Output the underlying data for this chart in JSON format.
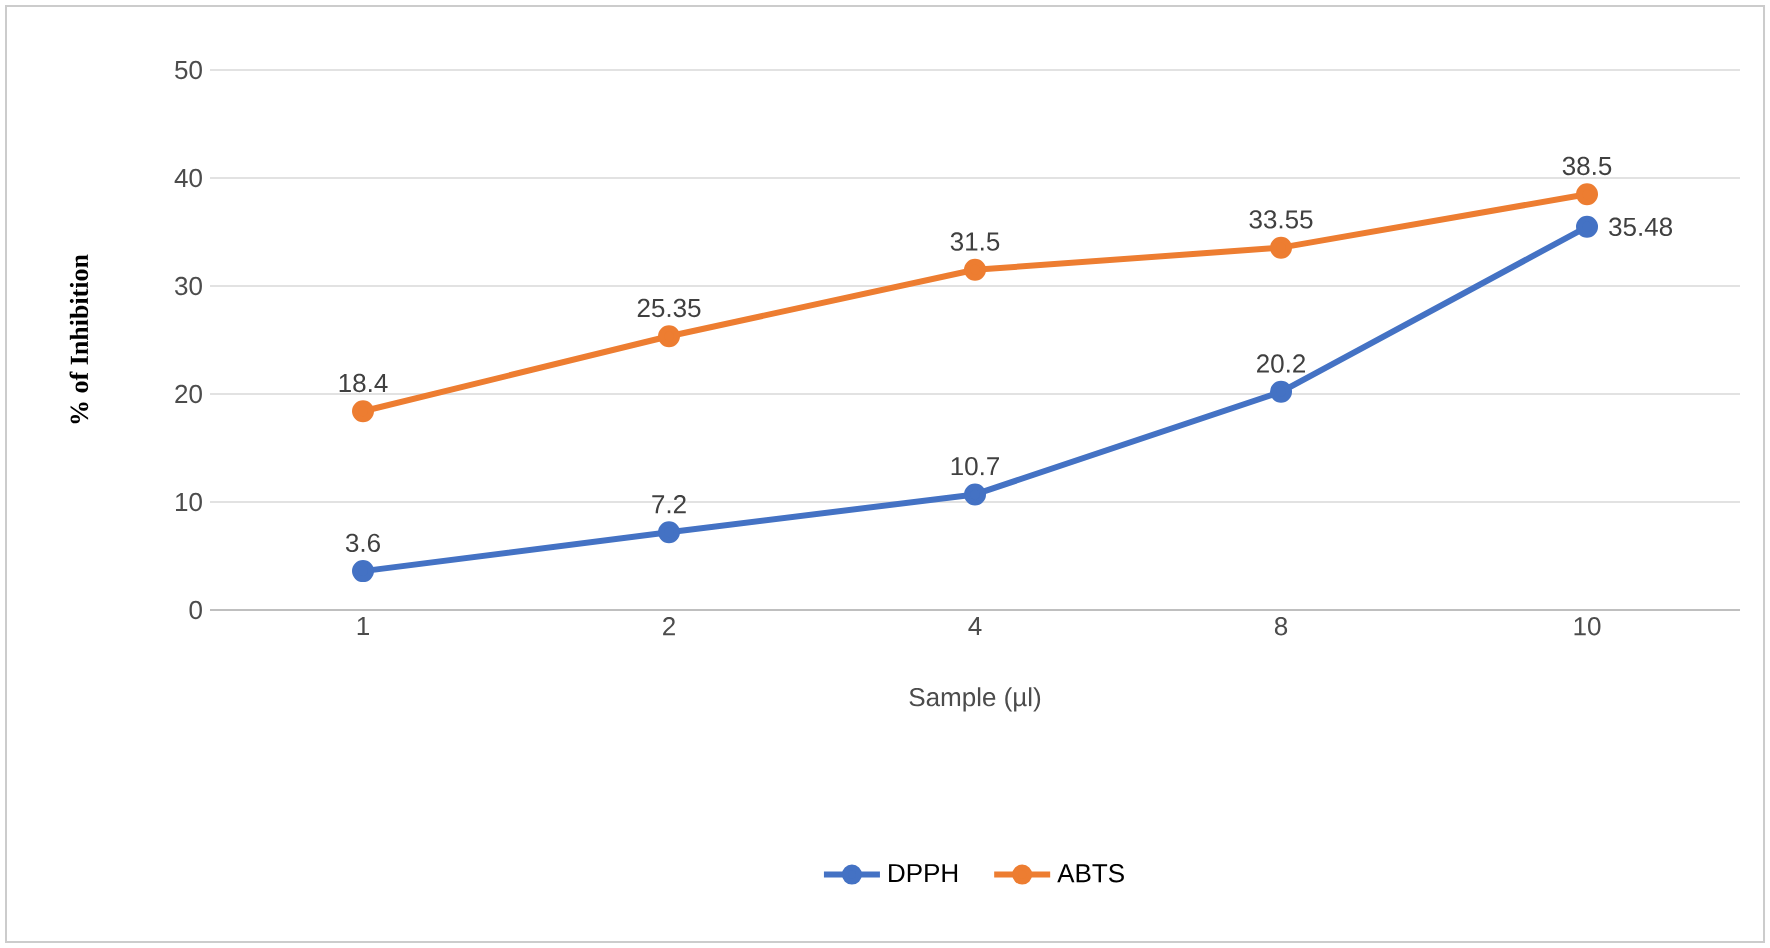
{
  "chart_data": {
    "type": "line",
    "xlabel": "Sample (µl)",
    "ylabel": "% of Inhibition",
    "categories": [
      "1",
      "2",
      "4",
      "8",
      "10"
    ],
    "series": [
      {
        "name": "DPPH",
        "color": "#4472c4",
        "values": [
          3.6,
          7.2,
          10.7,
          20.2,
          35.48
        ]
      },
      {
        "name": "ABTS",
        "color": "#ed7d31",
        "values": [
          18.4,
          25.35,
          31.5,
          33.55,
          38.5
        ]
      }
    ],
    "ylim": [
      0,
      50
    ],
    "yticks": [
      0,
      10,
      20,
      30,
      40,
      50
    ],
    "grid": "y",
    "legend": "bottom",
    "marker": "circle",
    "line_style": "solid",
    "data_labels": true
  }
}
